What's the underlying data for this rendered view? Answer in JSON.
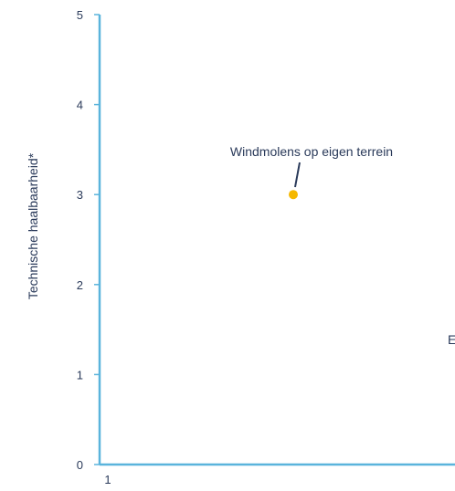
{
  "chart_data": {
    "type": "scatter",
    "ylabel": "Technische haalbaarheid*",
    "ylim": [
      0,
      5
    ],
    "y_ticks": [
      "0",
      "1",
      "2",
      "3",
      "4",
      "5"
    ],
    "x_tick_partial": "1",
    "points": [
      {
        "label": "Windmolens op eigen terrein",
        "y": 3
      }
    ],
    "clipped_label": "E",
    "grid": false,
    "colors": {
      "axis": "#5ab4dc",
      "point": "#f5b800",
      "text": "#2a3a5a",
      "leader": "#2a3a5a"
    }
  }
}
